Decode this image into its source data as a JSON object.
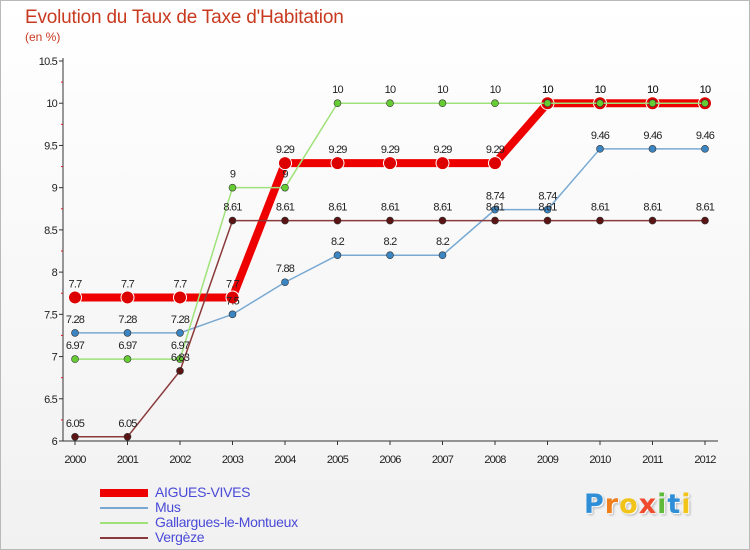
{
  "chart_data": {
    "type": "line",
    "title": "Evolution du Taux de Taxe d'Habitation",
    "subtitle": "(en %)",
    "xlabel": "",
    "ylabel": "",
    "categories": [
      "2000",
      "2001",
      "2002",
      "2003",
      "2004",
      "2005",
      "2006",
      "2007",
      "2008",
      "2009",
      "2010",
      "2011",
      "2012"
    ],
    "ylim": [
      6,
      10.5
    ],
    "yticks": [
      "6",
      "6.5",
      "7",
      "7.5",
      "8",
      "8.5",
      "9",
      "9.5",
      "10",
      "10.5"
    ],
    "grid": false,
    "legend_position": "bottom-left",
    "series": [
      {
        "name": "AIGUES-VIVES",
        "color": "#ee0000",
        "marker": "#dd0000",
        "emphasis": true,
        "values": [
          7.7,
          7.7,
          7.7,
          7.7,
          9.29,
          9.29,
          9.29,
          9.29,
          9.29,
          10,
          10,
          10,
          10
        ],
        "labels": [
          "7.7",
          "7.7",
          "7.7",
          "7.7",
          "9.29",
          "9.29",
          "9.29",
          "9.29",
          "9.29",
          "10",
          "10",
          "10",
          "10"
        ]
      },
      {
        "name": "Mus",
        "color": "#79a9d2",
        "marker": "#3a85c2",
        "emphasis": false,
        "values": [
          7.28,
          7.28,
          7.28,
          7.5,
          7.88,
          8.2,
          8.2,
          8.2,
          8.74,
          8.74,
          9.46,
          9.46,
          9.46
        ],
        "labels": [
          "7.28",
          "7.28",
          "7.28",
          "7.5",
          "7.88",
          "8.2",
          "8.2",
          "8.2",
          "8.74",
          "8.74",
          "9.46",
          "9.46",
          "9.46"
        ]
      },
      {
        "name": "Gallargues-le-Montueux",
        "color": "#9fe27a",
        "marker": "#66cc33",
        "emphasis": false,
        "values": [
          6.97,
          6.97,
          6.97,
          9,
          9,
          10,
          10,
          10,
          10,
          10,
          10,
          10,
          10
        ],
        "labels": [
          "6.97",
          "6.97",
          "6.97",
          "9",
          "9",
          "10",
          "10",
          "10",
          "10",
          "10",
          "10",
          "10",
          "10"
        ]
      },
      {
        "name": "Vergèze",
        "color": "#8a3a3a",
        "marker": "#5a1414",
        "emphasis": false,
        "values": [
          6.05,
          6.05,
          6.83,
          8.61,
          8.61,
          8.61,
          8.61,
          8.61,
          8.61,
          8.61,
          8.61,
          8.61,
          8.61
        ],
        "labels": [
          "6.05",
          "6.05",
          "6.83",
          "8.61",
          "8.61",
          "8.61",
          "8.61",
          "8.61",
          "8.61",
          "8.61",
          "8.61",
          "8.61",
          "8.61"
        ]
      }
    ]
  },
  "logo": {
    "letters": [
      "P",
      "r",
      "o",
      "x",
      "i",
      "t",
      "i"
    ],
    "colors": [
      "#2e8fd8",
      "#ef7e1a",
      "#f2c318",
      "#ef4a2b",
      "#5fba3a",
      "#2e8fd8",
      "#f2c318"
    ]
  }
}
